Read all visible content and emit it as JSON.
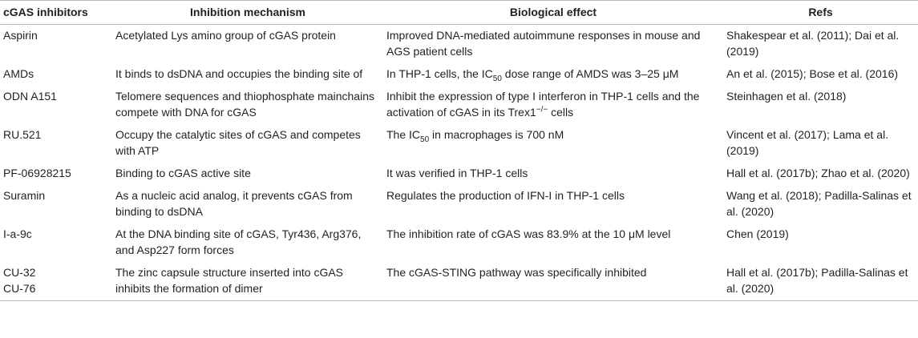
{
  "table": {
    "header": [
      "cGAS inhibitors",
      "Inhibition mechanism",
      "Biological effect",
      "Refs"
    ],
    "rows": [
      [
        "Aspirin",
        "Acetylated Lys amino group of cGAS protein",
        "Improved DNA-mediated autoimmune responses in mouse and AGS patient cells",
        "Shakespear et al. (2011); Dai et al. (2019)"
      ],
      [
        "AMDs",
        "It binds to dsDNA and occupies the binding site of",
        [
          "In THP-1 cells, the IC",
          "50",
          " dose range of AMDS was 3–25 μM"
        ],
        "An et al. (2015); Bose et al. (2016)"
      ],
      [
        "ODN A151",
        "Telomere sequences and thiophosphate mainchains compete with DNA for cGAS",
        [
          "Inhibit the expression of type I interferon in THP-1 cells and the activation of cGAS in its Trex1",
          "−/−",
          " cells"
        ],
        "Steinhagen et al. (2018)"
      ],
      [
        "RU.521",
        "Occupy the catalytic sites of cGAS and competes with ATP",
        [
          "The IC",
          "50",
          " in macrophages is 700 nM"
        ],
        "Vincent et al. (2017); Lama et al. (2019)"
      ],
      [
        "PF-06928215",
        "Binding to cGAS active site",
        "It was verified in THP-1 cells",
        "Hall et al. (2017b); Zhao et al. (2020)"
      ],
      [
        "Suramin",
        "As a nucleic acid analog, it prevents cGAS from binding to dsDNA",
        "Regulates the production of IFN-I in THP-1 cells",
        "Wang et al. (2018); Padilla-Salinas et al. (2020)"
      ],
      [
        "I-a-9c",
        "At the DNA binding site of cGAS, Tyr436, Arg376, and Asp227 form forces",
        "The inhibition rate of cGAS was 83.9% at the 10 μM level",
        "Chen (2019)"
      ],
      [
        "CU-32\nCU-76",
        "The zinc capsule structure inserted into cGAS inhibits the formation of dimer",
        "The cGAS-STING pathway was specifically inhibited",
        "Hall et al. (2017b); Padilla-Salinas et al. (2020)"
      ]
    ]
  }
}
